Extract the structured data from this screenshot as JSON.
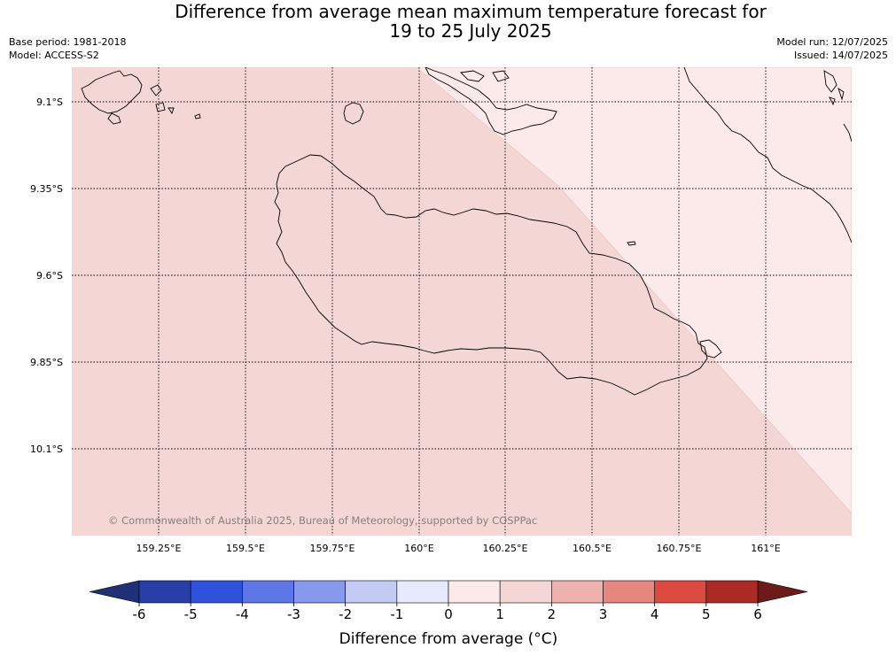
{
  "title": {
    "line1": "Difference from average mean maximum temperature forecast for",
    "line2": "19 to 25 July 2025"
  },
  "info": {
    "base_period": "Base period: 1981-2018",
    "model": "Model: ACCESS-S2",
    "model_run": "Model run: 12/07/2025",
    "issued": "Issued: 14/07/2025"
  },
  "map": {
    "lat_labels": [
      "9.1°S",
      "9.35°S",
      "9.6°S",
      "9.85°S",
      "10.1°S"
    ],
    "lon_labels": [
      "159.25°E",
      "159.5°E",
      "159.75°E",
      "160°E",
      "160.25°E",
      "160.5°E",
      "160.75°E",
      "161°E"
    ],
    "copyright": "© Commonwealth of Australia 2025, Bureau of Meteorology, supported by COSPPac",
    "regions": [
      {
        "name": "1 to 2",
        "color": "#f4d6d4"
      },
      {
        "name": "0 to 1",
        "color": "#fbeae9"
      }
    ]
  },
  "colorbar": {
    "title": "Difference from average (°C)",
    "ticks": [
      "-6",
      "-5",
      "-4",
      "-3",
      "-2",
      "-1",
      "0",
      "1",
      "2",
      "3",
      "4",
      "5",
      "6"
    ],
    "low_extend_color": "#1f2f78",
    "high_extend_color": "#6b1c1a",
    "colors": [
      "#2a3ea8",
      "#2f52dd",
      "#5d77e6",
      "#8799ec",
      "#c3cbf5",
      "#e7eafc",
      "#fbeae9",
      "#f4d6d4",
      "#eeb1ad",
      "#e68880",
      "#dd4a3f",
      "#ab2a24"
    ]
  }
}
